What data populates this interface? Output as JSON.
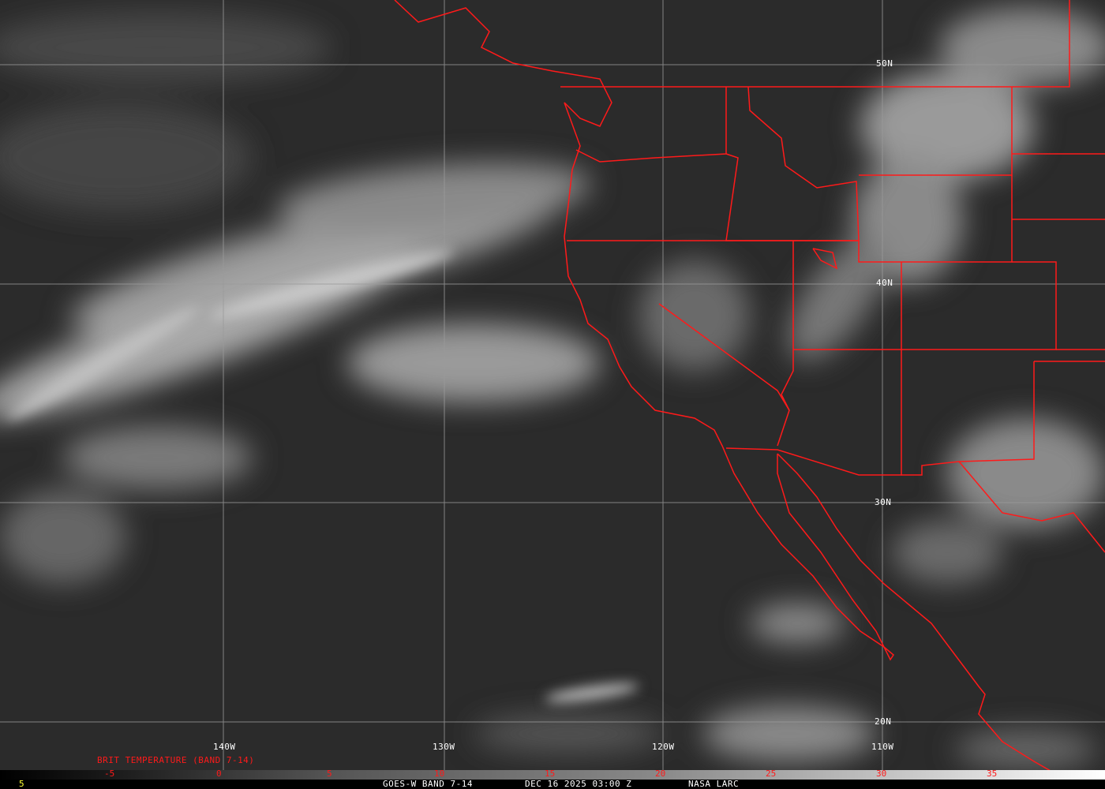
{
  "map": {
    "colors": {
      "background": "#2b2b2b",
      "borders": "#ff1a1a",
      "grid": "#9a9a9a"
    },
    "latitude_labels": [
      "50N",
      "40N",
      "30N",
      "20N"
    ],
    "longitude_labels": [
      "140W",
      "130W",
      "120W",
      "110W"
    ]
  },
  "legend": {
    "title": "BRIT TEMPERATURE (BAND 7-14)",
    "ticks": [
      "-5",
      "0",
      "5",
      "10",
      "15",
      "20",
      "25",
      "30",
      "35"
    ]
  },
  "footer": {
    "frame_number": "5",
    "product": "GOES-W BAND 7-14",
    "datetime": "DEC 16 2025 03:00 Z",
    "source": "NASA LARC"
  }
}
